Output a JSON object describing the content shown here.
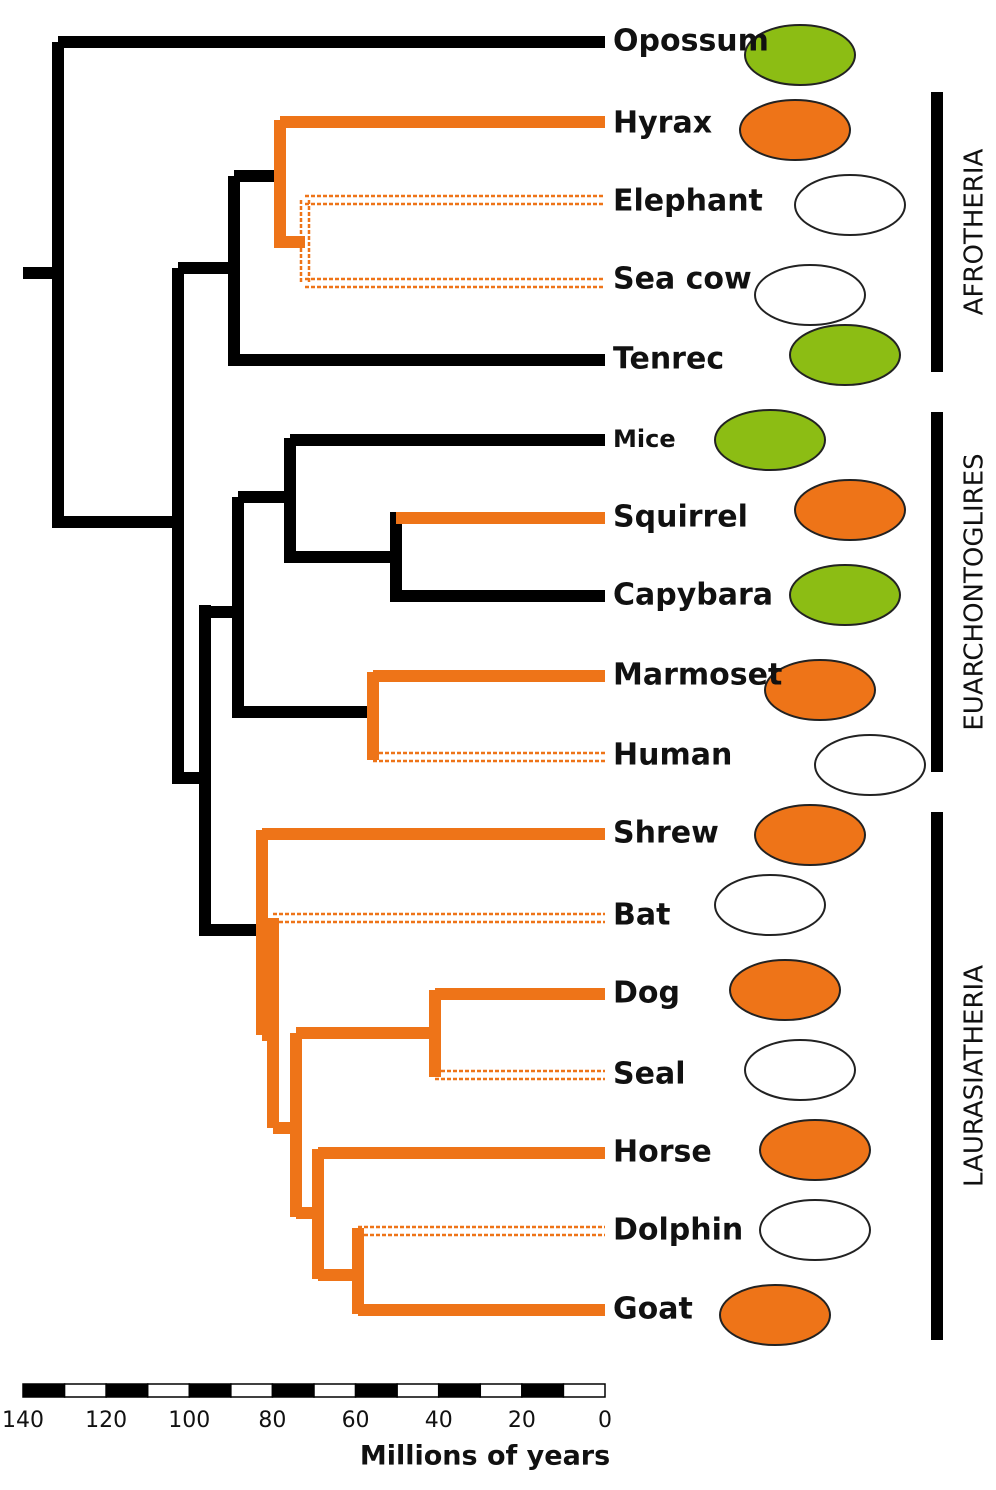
{
  "taxa": [
    "Opossum",
    "Hyrax",
    "Elephant",
    "Sea cow",
    "Tenrec",
    "Mice",
    "Squirrel",
    "Capybara",
    "Marmoset",
    "Human",
    "Shrew",
    "Bat",
    "Dog",
    "Seal",
    "Horse",
    "Dolphin",
    "Goat"
  ],
  "clades": [
    "AFROTHERIA",
    "EUARCHONTOGLIRES",
    "LAURASIATHERIA"
  ],
  "scale": {
    "ticks": [
      140,
      120,
      100,
      80,
      60,
      40,
      20,
      0
    ],
    "title": "Millions of years"
  }
}
